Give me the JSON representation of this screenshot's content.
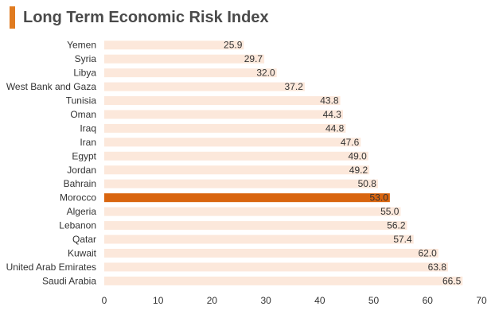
{
  "title": "Long Term Economic Risk Index",
  "colors": {
    "accent": "#e07b20",
    "bar_default": "#fce8db",
    "bar_highlight": "#d9650f",
    "highlight_label": "#ffffff"
  },
  "chart_data": {
    "type": "bar",
    "orientation": "horizontal",
    "title": "Long Term Economic Risk Index",
    "categories": [
      "Yemen",
      "Syria",
      "Libya",
      "West Bank and Gaza",
      "Tunisia",
      "Oman",
      "Iraq",
      "Iran",
      "Egypt",
      "Jordan",
      "Bahrain",
      "Morocco",
      "Algeria",
      "Lebanon",
      "Qatar",
      "Kuwait",
      "United Arab Emirates",
      "Saudi Arabia"
    ],
    "values": [
      25.9,
      29.7,
      32.0,
      37.2,
      43.8,
      44.3,
      44.8,
      47.6,
      49.0,
      49.2,
      50.8,
      53.0,
      55.0,
      56.2,
      57.4,
      62.0,
      63.8,
      66.5
    ],
    "value_labels": [
      "25.9",
      "29.7",
      "32.0",
      "37.2",
      "43.8",
      "44.3",
      "44.8",
      "47.6",
      "49.0",
      "49.2",
      "50.8",
      "53.0",
      "55.0",
      "56.2",
      "57.4",
      "62.0",
      "63.8",
      "66.5"
    ],
    "highlight": "Morocco",
    "xlim": [
      0,
      70
    ],
    "x_ticks": [
      0,
      10,
      20,
      30,
      40,
      50,
      60,
      70
    ],
    "grid": false,
    "legend": "none"
  }
}
